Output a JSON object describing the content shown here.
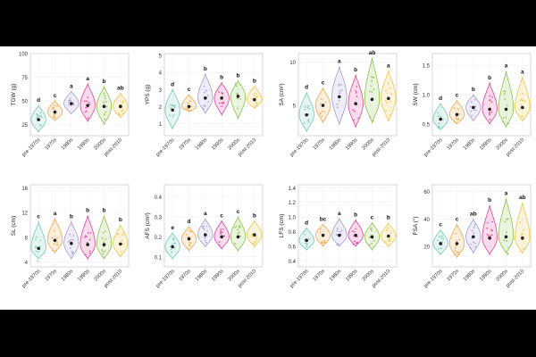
{
  "categories": [
    "pre-1970s",
    "1970s",
    "1980s",
    "1990s",
    "2000s",
    "post-2010"
  ],
  "colors": [
    "#74c9b6",
    "#f2a649",
    "#a79ad1",
    "#e0439a",
    "#8cc14a",
    "#efc544"
  ],
  "chart_data": [
    {
      "type": "violin",
      "ylabel": "TGW (g)",
      "ylim": [
        13,
        100
      ],
      "yticks": [
        "25",
        "50",
        "75",
        "100"
      ],
      "ytick_values": [
        25,
        50,
        75,
        100
      ],
      "letters": [
        "d",
        "c",
        "a",
        "a",
        "b",
        "ab"
      ],
      "series": [
        {
          "name": "pre-1970s",
          "min": 17,
          "max": 45,
          "median": 30
        },
        {
          "name": "1970s",
          "min": 29,
          "max": 50,
          "median": 38
        },
        {
          "name": "1980s",
          "min": 36,
          "max": 60,
          "median": 47
        },
        {
          "name": "1990s",
          "min": 28,
          "max": 68,
          "median": 45
        },
        {
          "name": "2000s",
          "min": 25,
          "max": 65,
          "median": 44
        },
        {
          "name": "post-2010",
          "min": 32,
          "max": 58,
          "median": 44
        }
      ]
    },
    {
      "type": "violin",
      "ylabel": "YPS (g)",
      "ylim": [
        0.3,
        5.1
      ],
      "yticks": [
        "1",
        "2",
        "3",
        "4",
        "5"
      ],
      "ytick_values": [
        1,
        2,
        3,
        4,
        5
      ],
      "letters": [
        "d",
        "c",
        "b",
        "b",
        "b",
        "b"
      ],
      "series": [
        {
          "name": "pre-1970s",
          "min": 0.7,
          "max": 3.0,
          "median": 1.8
        },
        {
          "name": "1970s",
          "min": 1.7,
          "max": 2.7,
          "median": 2.0
        },
        {
          "name": "1980s",
          "min": 1.6,
          "max": 3.9,
          "median": 2.5
        },
        {
          "name": "1990s",
          "min": 1.5,
          "max": 3.4,
          "median": 2.5
        },
        {
          "name": "2000s",
          "min": 1.3,
          "max": 3.5,
          "median": 2.6
        },
        {
          "name": "post-2010",
          "min": 1.9,
          "max": 3.2,
          "median": 2.4
        }
      ]
    },
    {
      "type": "violin",
      "ylabel": "SA (cm²)",
      "ylim": [
        1.5,
        11
      ],
      "yticks": [
        "5",
        "10"
      ],
      "ytick_values": [
        5,
        10
      ],
      "letters": [
        "d",
        "c",
        "a",
        "b",
        "ab",
        "a"
      ],
      "series": [
        {
          "name": "pre-1970s",
          "min": 2.0,
          "max": 6.5,
          "median": 3.9
        },
        {
          "name": "1970s",
          "min": 3.0,
          "max": 7.0,
          "median": 5.0
        },
        {
          "name": "1980s",
          "min": 2.8,
          "max": 9.5,
          "median": 6.0
        },
        {
          "name": "1990s",
          "min": 2.5,
          "max": 8.5,
          "median": 5.2
        },
        {
          "name": "2000s",
          "min": 3.0,
          "max": 10.5,
          "median": 5.7
        },
        {
          "name": "post-2010",
          "min": 3.2,
          "max": 9.0,
          "median": 5.8
        }
      ]
    },
    {
      "type": "violin",
      "ylabel": "SW (cm)",
      "ylim": [
        0.3,
        1.7
      ],
      "yticks": [
        "0.5",
        "1.0",
        "1.5"
      ],
      "ytick_values": [
        0.5,
        1.0,
        1.5
      ],
      "letters": [
        "d",
        "c",
        "b",
        "b",
        "a",
        "a"
      ],
      "series": [
        {
          "name": "pre-1970s",
          "min": 0.4,
          "max": 0.85,
          "median": 0.58
        },
        {
          "name": "1970s",
          "min": 0.5,
          "max": 0.9,
          "median": 0.66
        },
        {
          "name": "1980s",
          "min": 0.55,
          "max": 1.0,
          "median": 0.78
        },
        {
          "name": "1990s",
          "min": 0.5,
          "max": 1.2,
          "median": 0.75
        },
        {
          "name": "2000s",
          "min": 0.45,
          "max": 1.4,
          "median": 0.75
        },
        {
          "name": "post-2010",
          "min": 0.55,
          "max": 1.3,
          "median": 0.78
        }
      ]
    },
    {
      "type": "violin",
      "ylabel": "SL (cm)",
      "ylim": [
        3.2,
        16.5
      ],
      "yticks": [
        "4",
        "8",
        "12",
        "16"
      ],
      "ytick_values": [
        4,
        8,
        12,
        16
      ],
      "letters": [
        "c",
        "a",
        "b",
        "b",
        "b",
        "b"
      ],
      "series": [
        {
          "name": "pre-1970s",
          "min": 4.5,
          "max": 10.5,
          "median": 6.2
        },
        {
          "name": "1970s",
          "min": 5.5,
          "max": 11.0,
          "median": 7.5
        },
        {
          "name": "1980s",
          "min": 4.5,
          "max": 10.5,
          "median": 7.0
        },
        {
          "name": "1990s",
          "min": 4.5,
          "max": 11.5,
          "median": 6.8
        },
        {
          "name": "2000s",
          "min": 4.5,
          "max": 11.5,
          "median": 6.8
        },
        {
          "name": "post-2010",
          "min": 4.8,
          "max": 10.0,
          "median": 6.9
        }
      ]
    },
    {
      "type": "violin",
      "ylabel": "AFS (cm²)",
      "ylim": [
        0.05,
        0.46
      ],
      "yticks": [
        "0.1",
        "0.2",
        "0.3",
        "0.4"
      ],
      "ytick_values": [
        0.1,
        0.2,
        0.3,
        0.4
      ],
      "letters": [
        "e",
        "d",
        "a",
        "c",
        "c",
        "b"
      ],
      "series": [
        {
          "name": "pre-1970s",
          "min": 0.09,
          "max": 0.22,
          "median": 0.15
        },
        {
          "name": "1970s",
          "min": 0.13,
          "max": 0.25,
          "median": 0.19
        },
        {
          "name": "1980s",
          "min": 0.15,
          "max": 0.29,
          "median": 0.21
        },
        {
          "name": "1990s",
          "min": 0.14,
          "max": 0.28,
          "median": 0.2
        },
        {
          "name": "2000s",
          "min": 0.13,
          "max": 0.3,
          "median": 0.2
        },
        {
          "name": "post-2010",
          "min": 0.15,
          "max": 0.28,
          "median": 0.21
        }
      ]
    },
    {
      "type": "violin",
      "ylabel": "LFS (cm)",
      "ylim": [
        0.32,
        1.44
      ],
      "yticks": [
        "0.4",
        "0.6",
        "0.8",
        "1.0",
        "1.2",
        "1.4"
      ],
      "ytick_values": [
        0.4,
        0.6,
        0.8,
        1.0,
        1.2,
        1.4
      ],
      "letters": [
        "d",
        "bc",
        "a",
        "b",
        "c",
        "b"
      ],
      "series": [
        {
          "name": "pre-1970s",
          "min": 0.55,
          "max": 0.85,
          "median": 0.68
        },
        {
          "name": "1970s",
          "min": 0.6,
          "max": 0.9,
          "median": 0.75
        },
        {
          "name": "1980s",
          "min": 0.6,
          "max": 0.98,
          "median": 0.75
        },
        {
          "name": "1990s",
          "min": 0.6,
          "max": 0.96,
          "median": 0.75
        },
        {
          "name": "2000s",
          "min": 0.55,
          "max": 0.92,
          "median": 0.73
        },
        {
          "name": "post-2010",
          "min": 0.6,
          "max": 0.92,
          "median": 0.74
        }
      ]
    },
    {
      "type": "violin",
      "ylabel": "FSA (°)",
      "ylim": [
        5,
        65
      ],
      "yticks": [
        "20",
        "40",
        "60"
      ],
      "ytick_values": [
        20,
        40,
        60
      ],
      "letters": [
        "c",
        "c",
        "ab",
        "b",
        "a",
        "ab"
      ],
      "series": [
        {
          "name": "pre-1970s",
          "min": 14,
          "max": 32,
          "median": 22
        },
        {
          "name": "1970s",
          "min": 12,
          "max": 36,
          "median": 22
        },
        {
          "name": "1980s",
          "min": 15,
          "max": 40,
          "median": 27
        },
        {
          "name": "1990s",
          "min": 14,
          "max": 50,
          "median": 26
        },
        {
          "name": "2000s",
          "min": 15,
          "max": 55,
          "median": 27
        },
        {
          "name": "post-2010",
          "min": 15,
          "max": 52,
          "median": 26
        }
      ]
    }
  ]
}
